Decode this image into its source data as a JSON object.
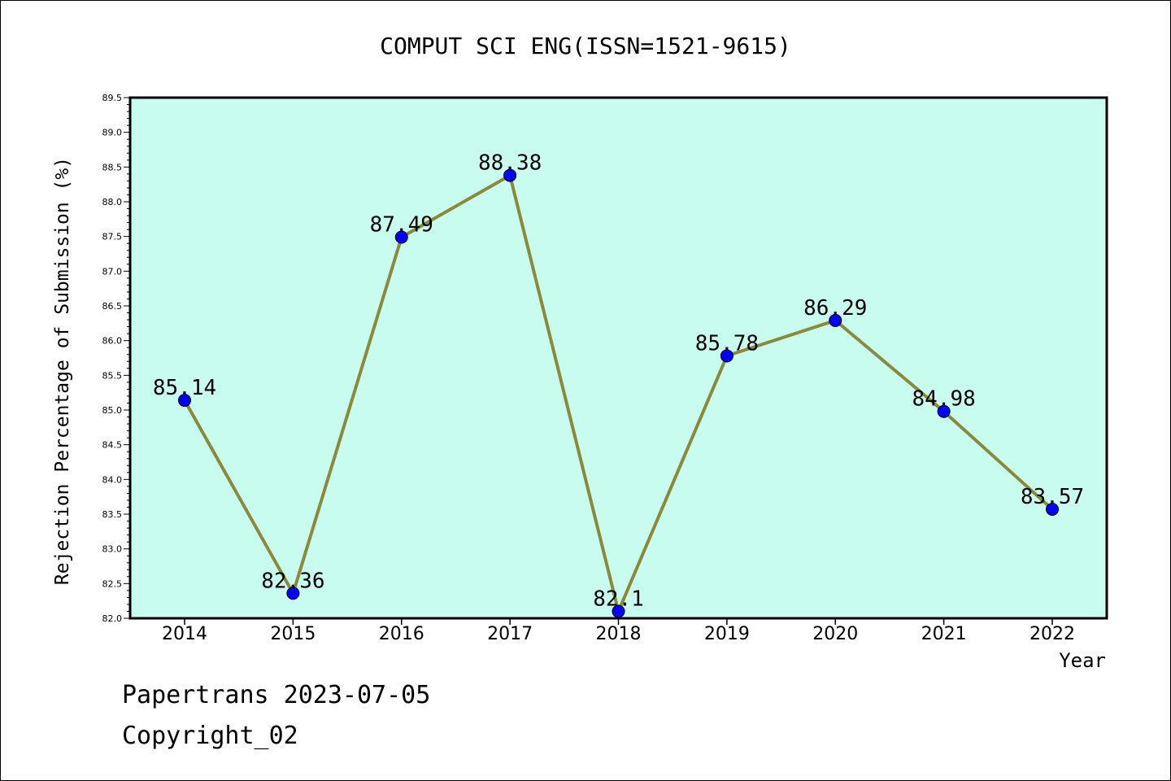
{
  "chart_data": {
    "type": "line",
    "title": "COMPUT SCI ENG(ISSN=1521-9615)",
    "xlabel": "Year",
    "ylabel": "Rejection Percentage of Submission (%)",
    "ylim": [
      82.0,
      89.5
    ],
    "y_ticks": [
      "82.0",
      "82.5",
      "83.0",
      "83.5",
      "84.0",
      "84.5",
      "85.0",
      "85.5",
      "86.0",
      "86.5",
      "87.0",
      "87.5",
      "88.0",
      "88.5",
      "89.0",
      "89.5"
    ],
    "categories": [
      "2014",
      "2015",
      "2016",
      "2017",
      "2018",
      "2019",
      "2020",
      "2021",
      "2022"
    ],
    "values": [
      85.14,
      82.36,
      87.49,
      88.38,
      82.1,
      85.78,
      86.29,
      84.98,
      83.57
    ],
    "data_labels": [
      "85.14",
      "82.36",
      "87.49",
      "88.38",
      "82.1",
      "85.78",
      "86.29",
      "84.98",
      "83.57"
    ],
    "line_color": "#8b8a3a",
    "marker_color": "#0000ff",
    "plot_background": "#c8fcee",
    "grid": false,
    "legend": "none"
  },
  "footer": {
    "line1": "Papertrans 2023-07-05",
    "line2": "Copyright_02"
  }
}
